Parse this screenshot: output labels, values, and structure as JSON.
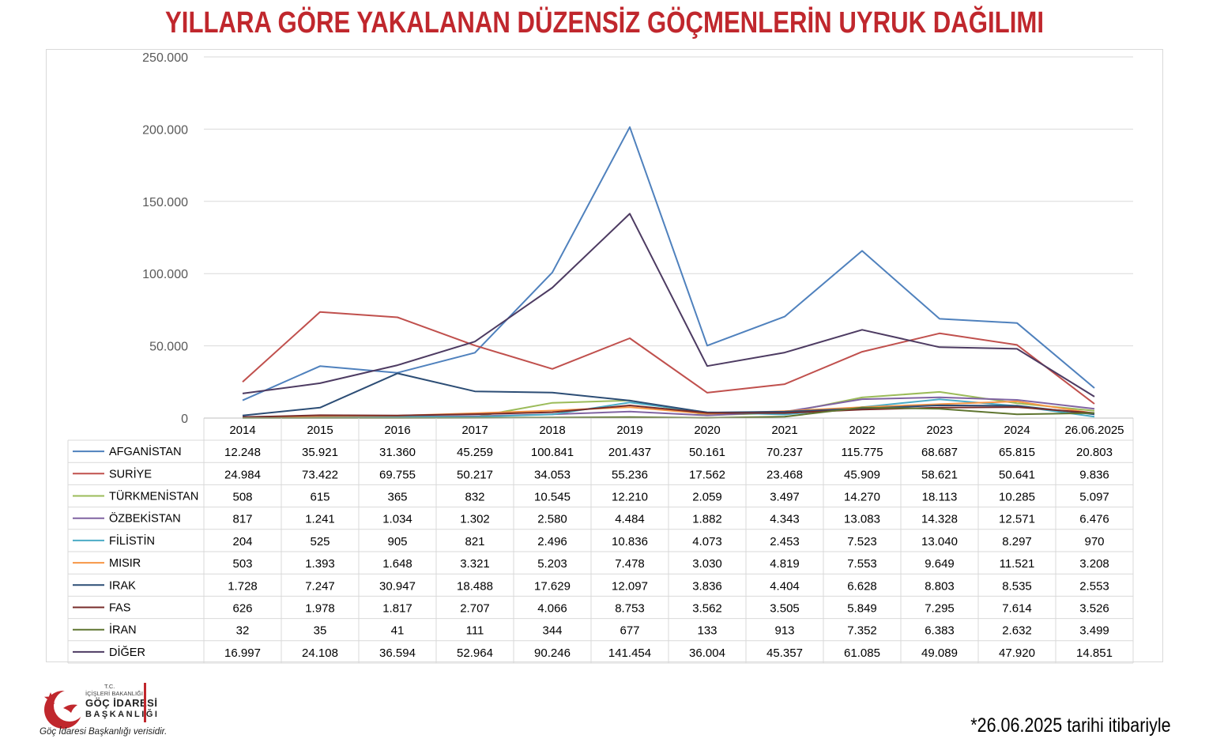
{
  "title": "YILLARA GÖRE YAKALANAN DÜZENSİZ GÖÇMENLERİN UYRUK DAĞILIMI",
  "footnote": "*26.06.2025 tarihi itibariyle",
  "logo": {
    "line1": "T.C.",
    "line2": "İÇİŞLERİ BAKANLIĞI",
    "line3": "GÖÇ İDARESİ",
    "line4": "BAŞKANLIĞI",
    "caption": "Göç İdaresi Başkanlığı verisidir.",
    "colors": {
      "red": "#c0272d"
    }
  },
  "chart_data": {
    "type": "line",
    "title": "YILLARA GÖRE YAKALANAN DÜZENSİZ GÖÇMENLERİN UYRUK DAĞILIMI",
    "categories": [
      "2014",
      "2015",
      "2016",
      "2017",
      "2018",
      "2019",
      "2020",
      "2021",
      "2022",
      "2023",
      "2024",
      "26.06.2025"
    ],
    "ylim": [
      0,
      250000
    ],
    "yticks": [
      0,
      50000,
      100000,
      150000,
      200000,
      250000
    ],
    "ytick_labels": [
      "0",
      "50.000",
      "100.000",
      "150.000",
      "200.000",
      "250.000"
    ],
    "grid": true,
    "legend": "data-table-below",
    "series": [
      {
        "name": "AFGANİSTAN",
        "color": "#4f81bd",
        "values": [
          12248,
          35921,
          31360,
          45259,
          100841,
          201437,
          50161,
          70237,
          115775,
          68687,
          65815,
          20803
        ],
        "labels": [
          "12.248",
          "35.921",
          "31.360",
          "45.259",
          "100.841",
          "201.437",
          "50.161",
          "70.237",
          "115.775",
          "68.687",
          "65.815",
          "20.803"
        ]
      },
      {
        "name": "SURİYE",
        "color": "#c0504d",
        "values": [
          24984,
          73422,
          69755,
          50217,
          34053,
          55236,
          17562,
          23468,
          45909,
          58621,
          50641,
          9836
        ],
        "labels": [
          "24.984",
          "73.422",
          "69.755",
          "50.217",
          "34.053",
          "55.236",
          "17.562",
          "23.468",
          "45.909",
          "58.621",
          "50.641",
          "9.836"
        ]
      },
      {
        "name": "TÜRKMENİSTAN",
        "color": "#9bbb59",
        "values": [
          508,
          615,
          365,
          832,
          10545,
          12210,
          2059,
          3497,
          14270,
          18113,
          10285,
          5097
        ],
        "labels": [
          "508",
          "615",
          "365",
          "832",
          "10.545",
          "12.210",
          "2.059",
          "3.497",
          "14.270",
          "18.113",
          "10.285",
          "5.097"
        ]
      },
      {
        "name": "ÖZBEKİSTAN",
        "color": "#8064a2",
        "values": [
          817,
          1241,
          1034,
          1302,
          2580,
          4484,
          1882,
          4343,
          13083,
          14328,
          12571,
          6476
        ],
        "labels": [
          "817",
          "1.241",
          "1.034",
          "1.302",
          "2.580",
          "4.484",
          "1.882",
          "4.343",
          "13.083",
          "14.328",
          "12.571",
          "6.476"
        ]
      },
      {
        "name": "FİLİSTİN",
        "color": "#4bacc6",
        "values": [
          204,
          525,
          905,
          821,
          2496,
          10836,
          4073,
          2453,
          7523,
          13040,
          8297,
          970
        ],
        "labels": [
          "204",
          "525",
          "905",
          "821",
          "2.496",
          "10.836",
          "4.073",
          "2.453",
          "7.523",
          "13.040",
          "8.297",
          "970"
        ]
      },
      {
        "name": "MISIR",
        "color": "#f79646",
        "values": [
          503,
          1393,
          1648,
          3321,
          5203,
          7478,
          3030,
          4819,
          7553,
          9649,
          11521,
          3208
        ],
        "labels": [
          "503",
          "1.393",
          "1.648",
          "3.321",
          "5.203",
          "7.478",
          "3.030",
          "4.819",
          "7.553",
          "9.649",
          "11.521",
          "3.208"
        ]
      },
      {
        "name": "IRAK",
        "color": "#2c4d75",
        "values": [
          1728,
          7247,
          30947,
          18488,
          17629,
          12097,
          3836,
          4404,
          6628,
          8803,
          8535,
          2553
        ],
        "labels": [
          "1.728",
          "7.247",
          "30.947",
          "18.488",
          "17.629",
          "12.097",
          "3.836",
          "4.404",
          "6.628",
          "8.803",
          "8.535",
          "2.553"
        ]
      },
      {
        "name": "FAS",
        "color": "#772c2a",
        "values": [
          626,
          1978,
          1817,
          2707,
          4066,
          8753,
          3562,
          3505,
          5849,
          7295,
          7614,
          3526
        ],
        "labels": [
          "626",
          "1.978",
          "1.817",
          "2.707",
          "4.066",
          "8.753",
          "3.562",
          "3.505",
          "5.849",
          "7.295",
          "7.614",
          "3.526"
        ]
      },
      {
        "name": "İRAN",
        "color": "#5f7530",
        "values": [
          32,
          35,
          41,
          111,
          344,
          677,
          133,
          913,
          7352,
          6383,
          2632,
          3499
        ],
        "labels": [
          "32",
          "35",
          "41",
          "111",
          "344",
          "677",
          "133",
          "913",
          "7.352",
          "6.383",
          "2.632",
          "3.499"
        ]
      },
      {
        "name": "DİĞER",
        "color": "#4d3b62",
        "values": [
          16997,
          24108,
          36594,
          52964,
          90246,
          141454,
          36004,
          45357,
          61085,
          49089,
          47920,
          14851
        ],
        "labels": [
          "16.997",
          "24.108",
          "36.594",
          "52.964",
          "90.246",
          "141.454",
          "36.004",
          "45.357",
          "61.085",
          "49.089",
          "47.920",
          "14.851"
        ]
      }
    ]
  }
}
